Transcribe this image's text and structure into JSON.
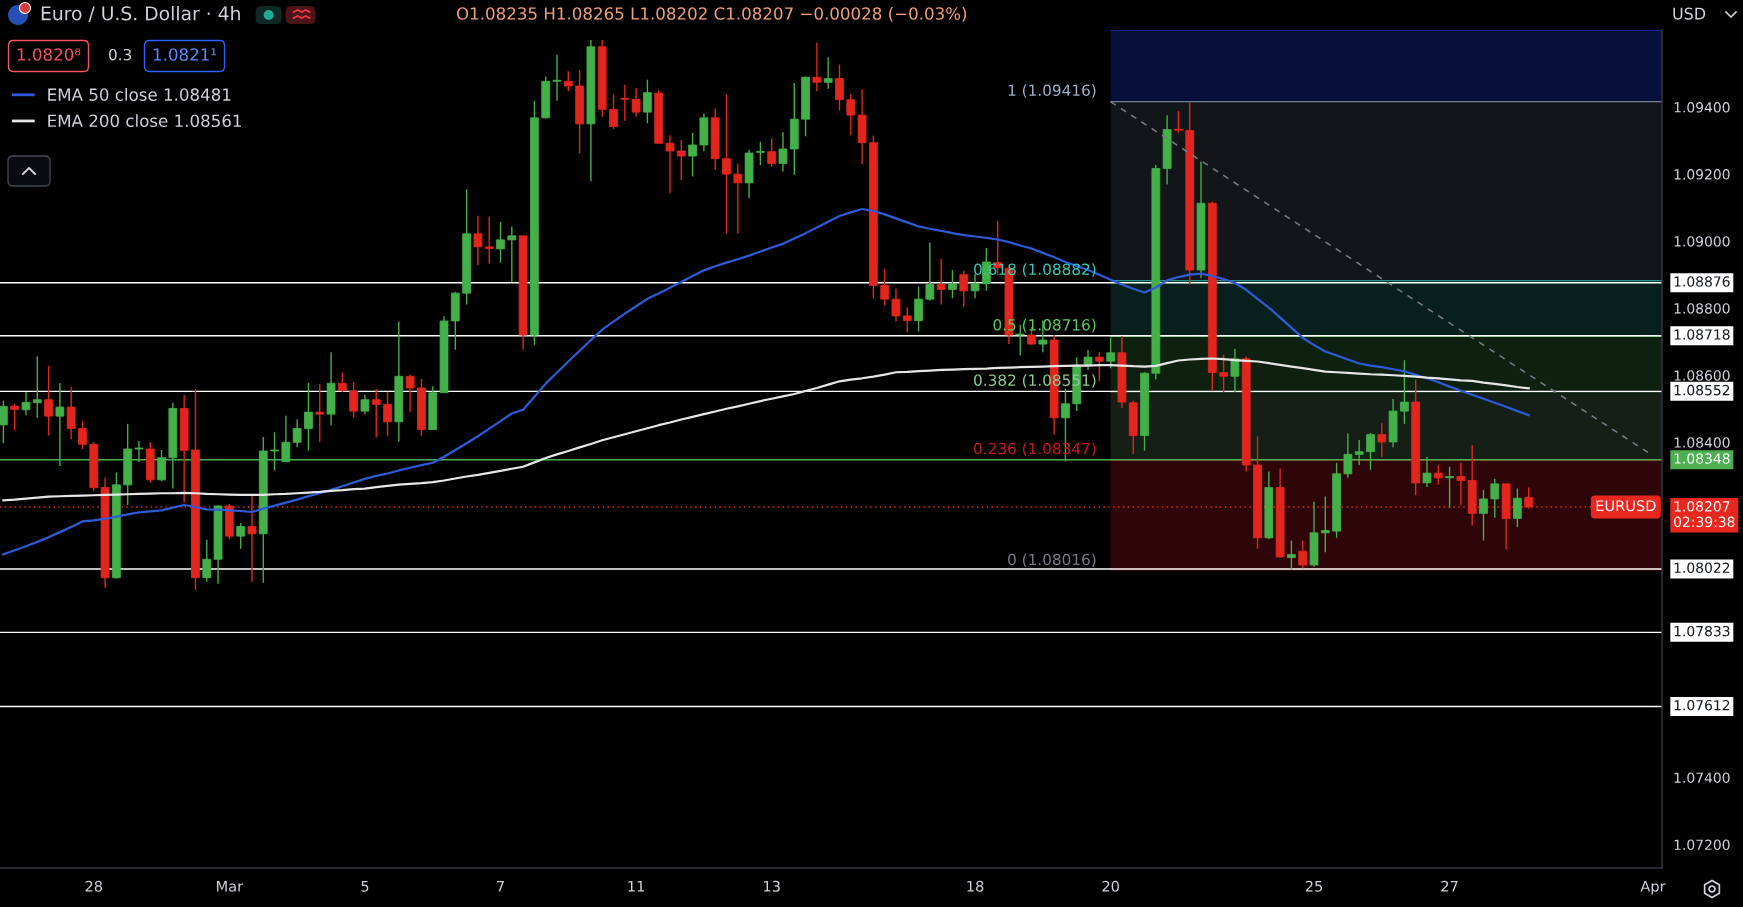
{
  "chart_data": {
    "type": "candlestick",
    "title": "Euro / U.S. Dollar · 4h",
    "subtitle": "O1.08235 H1.08265 L1.08202 C1.08207 −0.00028 (−0.03%)",
    "categories": [
      null,
      null,
      null,
      null,
      null,
      null,
      null,
      null,
      "28",
      null,
      null,
      null,
      null,
      null,
      null,
      null,
      null,
      null,
      null,
      null,
      "Mar",
      null,
      null,
      null,
      null,
      null,
      null,
      null,
      null,
      null,
      null,
      null,
      "5",
      null,
      null,
      null,
      null,
      null,
      null,
      null,
      null,
      null,
      null,
      null,
      "7",
      null,
      null,
      null,
      null,
      null,
      null,
      null,
      null,
      null,
      null,
      null,
      "11",
      null,
      null,
      null,
      null,
      null,
      null,
      null,
      null,
      null,
      null,
      null,
      "13",
      null,
      null,
      null,
      null,
      null,
      null,
      null,
      null,
      null,
      null,
      null,
      null,
      null,
      null,
      null,
      null,
      null,
      "18",
      null,
      null,
      null,
      null,
      null,
      null,
      null,
      null,
      null,
      null,
      null,
      "20",
      null,
      null,
      null,
      null,
      null,
      null,
      null,
      null,
      null,
      null,
      null,
      null,
      null,
      null,
      null,
      null,
      null,
      "25",
      null,
      null,
      null,
      null,
      null,
      null,
      null,
      null,
      null,
      null,
      null,
      "27",
      null,
      null,
      null,
      null,
      null,
      null,
      null,
      null,
      null,
      null,
      null,
      null,
      null,
      null,
      null,
      null,
      null,
      "Apr"
    ],
    "ohlc": [
      [
        1.08452,
        1.08524,
        1.08397,
        1.08507
      ],
      [
        1.08508,
        1.08515,
        1.08436,
        1.08498
      ],
      [
        1.08497,
        1.0855,
        1.08481,
        1.08519
      ],
      [
        1.08518,
        1.08657,
        1.08473,
        1.08527
      ],
      [
        1.08527,
        1.08628,
        1.0842,
        1.08478
      ],
      [
        1.08478,
        1.08577,
        1.08329,
        1.08505
      ],
      [
        1.08505,
        1.08565,
        1.08409,
        1.08441
      ],
      [
        1.08441,
        1.08462,
        1.0838,
        1.08394
      ],
      [
        1.08394,
        1.08401,
        1.08255,
        1.08265
      ],
      [
        1.08265,
        1.08295,
        1.07966,
        1.07996
      ],
      [
        1.07996,
        1.0831,
        1.07993,
        1.08273
      ],
      [
        1.08273,
        1.08455,
        1.08213,
        1.0838
      ],
      [
        1.0838,
        1.08404,
        1.08341,
        1.08381
      ],
      [
        1.0838,
        1.08401,
        1.08279,
        1.08288
      ],
      [
        1.08288,
        1.08377,
        1.08284,
        1.08354
      ],
      [
        1.08354,
        1.08518,
        1.08262,
        1.08501
      ],
      [
        1.08501,
        1.08542,
        1.0822,
        1.08376
      ],
      [
        1.08377,
        1.08558,
        1.07959,
        1.07996
      ],
      [
        1.07996,
        1.08109,
        1.07984,
        1.08051
      ],
      [
        1.08051,
        1.08212,
        1.07978,
        1.0821
      ],
      [
        1.0821,
        1.08216,
        1.08111,
        1.0812
      ],
      [
        1.0812,
        1.08159,
        1.08082,
        1.08149
      ],
      [
        1.08149,
        1.08243,
        1.07984,
        1.08127
      ],
      [
        1.08127,
        1.08416,
        1.07981,
        1.08374
      ],
      [
        1.08374,
        1.0843,
        1.08316,
        1.08375
      ],
      [
        1.08342,
        1.08479,
        1.08342,
        1.084
      ],
      [
        1.084,
        1.08469,
        1.08385,
        1.08441
      ],
      [
        1.08441,
        1.08577,
        1.08375,
        1.0849
      ],
      [
        1.0849,
        1.08574,
        1.08401,
        1.08484
      ],
      [
        1.08484,
        1.08669,
        1.0845,
        1.08576
      ],
      [
        1.08576,
        1.08608,
        1.0855,
        1.08554
      ],
      [
        1.08553,
        1.0858,
        1.08473,
        1.08493
      ],
      [
        1.08493,
        1.08542,
        1.08484,
        1.08527
      ],
      [
        1.08527,
        1.08558,
        1.08414,
        1.08513
      ],
      [
        1.08513,
        1.08551,
        1.08419,
        1.08461
      ],
      [
        1.08461,
        1.0876,
        1.08402,
        1.08597
      ],
      [
        1.08597,
        1.08601,
        1.08491,
        1.08562
      ],
      [
        1.08562,
        1.08589,
        1.08419,
        1.08438
      ],
      [
        1.08438,
        1.08567,
        1.08438,
        1.08548
      ],
      [
        1.08548,
        1.08776,
        1.08548,
        1.08762
      ],
      [
        1.08762,
        1.08849,
        1.08676,
        1.08845
      ],
      [
        1.08845,
        1.09155,
        1.08811,
        1.09022
      ],
      [
        1.09022,
        1.09076,
        1.08928,
        1.08983
      ],
      [
        1.08983,
        1.09073,
        1.08933,
        1.08978
      ],
      [
        1.08977,
        1.09058,
        1.08936,
        1.09004
      ],
      [
        1.09004,
        1.09044,
        1.08878,
        1.09016
      ],
      [
        1.09016,
        1.09016,
        1.08676,
        1.0872
      ],
      [
        1.0872,
        1.09419,
        1.0869,
        1.09368
      ],
      [
        1.09368,
        1.09491,
        1.09366,
        1.09477
      ],
      [
        1.09477,
        1.09556,
        1.09419,
        1.09478
      ],
      [
        1.09477,
        1.09507,
        1.09448,
        1.09463
      ],
      [
        1.09463,
        1.0951,
        1.09262,
        1.0935
      ],
      [
        1.0935,
        1.096,
        1.09179,
        1.0958
      ],
      [
        1.0958,
        1.096,
        1.09371,
        1.09393
      ],
      [
        1.09393,
        1.09438,
        1.09335,
        1.09342
      ],
      [
        1.09424,
        1.09467,
        1.09359,
        1.09423
      ],
      [
        1.09423,
        1.09456,
        1.09371,
        1.09385
      ],
      [
        1.09385,
        1.09482,
        1.09352,
        1.09443
      ],
      [
        1.09442,
        1.0945,
        1.09292,
        1.09292
      ],
      [
        1.09292,
        1.09316,
        1.09143,
        1.09269
      ],
      [
        1.09269,
        1.09302,
        1.09182,
        1.09254
      ],
      [
        1.09254,
        1.09323,
        1.09193,
        1.09287
      ],
      [
        1.09287,
        1.09381,
        1.09268,
        1.09368
      ],
      [
        1.09368,
        1.09395,
        1.09212,
        1.09246
      ],
      [
        1.09246,
        1.09438,
        1.09022,
        1.092
      ],
      [
        1.092,
        1.09232,
        1.09022,
        1.09174
      ],
      [
        1.09174,
        1.09273,
        1.09128,
        1.09263
      ],
      [
        1.09265,
        1.09296,
        1.09227,
        1.09266
      ],
      [
        1.09267,
        1.09307,
        1.09222,
        1.09232
      ],
      [
        1.09232,
        1.09325,
        1.09208,
        1.09275
      ],
      [
        1.09275,
        1.09472,
        1.09198,
        1.09364
      ],
      [
        1.09364,
        1.09491,
        1.09313,
        1.09489
      ],
      [
        1.09489,
        1.09592,
        1.09448,
        1.09474
      ],
      [
        1.09474,
        1.09549,
        1.09455,
        1.09485
      ],
      [
        1.09485,
        1.09527,
        1.0939,
        1.09422
      ],
      [
        1.09422,
        1.0944,
        1.09316,
        1.09376
      ],
      [
        1.09376,
        1.09453,
        1.0923,
        1.09294
      ],
      [
        1.09294,
        1.09315,
        1.08829,
        1.08868
      ],
      [
        1.08868,
        1.08917,
        1.08808,
        1.08827
      ],
      [
        1.08827,
        1.08859,
        1.0876,
        1.08777
      ],
      [
        1.08777,
        1.08803,
        1.08728,
        1.08763
      ],
      [
        1.08763,
        1.08864,
        1.08731,
        1.08827
      ],
      [
        1.08827,
        1.08996,
        1.08823,
        1.08871
      ],
      [
        1.08871,
        1.08948,
        1.08811,
        1.08856
      ],
      [
        1.08856,
        1.08914,
        1.0883,
        1.08873
      ],
      [
        1.089,
        1.08912,
        1.08805,
        1.08852
      ],
      [
        1.08852,
        1.08902,
        1.0883,
        1.08873
      ],
      [
        1.08873,
        1.0898,
        1.08852,
        1.08938
      ],
      [
        1.08936,
        1.0906,
        1.089,
        1.08921
      ],
      [
        1.08919,
        1.08919,
        1.08693,
        1.0872
      ],
      [
        1.0872,
        1.08751,
        1.08659,
        1.08721
      ],
      [
        1.0872,
        1.08744,
        1.08691,
        1.08693
      ],
      [
        1.08693,
        1.08763,
        1.08669,
        1.08705
      ],
      [
        1.08705,
        1.0872,
        1.08423,
        1.08473
      ],
      [
        1.08473,
        1.0856,
        1.08343,
        1.08515
      ],
      [
        1.08515,
        1.08654,
        1.08493,
        1.0863
      ],
      [
        1.0863,
        1.08675,
        1.08616,
        1.08654
      ],
      [
        1.08654,
        1.08669,
        1.08583,
        1.08642
      ],
      [
        1.08642,
        1.08712,
        1.08621,
        1.08667
      ],
      [
        1.08667,
        1.08717,
        1.08502,
        1.0852
      ],
      [
        1.08518,
        1.08524,
        1.08365,
        1.0842
      ],
      [
        1.0842,
        1.08609,
        1.08375,
        1.08606
      ],
      [
        1.08606,
        1.09227,
        1.08587,
        1.09217
      ],
      [
        1.09217,
        1.09376,
        1.09169,
        1.09333
      ],
      [
        1.09332,
        1.09388,
        1.09323,
        1.09331
      ],
      [
        1.0933,
        1.09416,
        1.08871,
        1.08914
      ],
      [
        1.08914,
        1.09238,
        1.0889,
        1.09113
      ],
      [
        1.09113,
        1.09118,
        1.08553,
        1.08608
      ],
      [
        1.08608,
        1.08661,
        1.0855,
        1.08597
      ],
      [
        1.08597,
        1.08678,
        1.0855,
        1.08649
      ],
      [
        1.08649,
        1.08656,
        1.08313,
        1.08332
      ],
      [
        1.08332,
        1.08418,
        1.08082,
        1.08115
      ],
      [
        1.08115,
        1.08313,
        1.08111,
        1.08265
      ],
      [
        1.08265,
        1.08322,
        1.08056,
        1.08058
      ],
      [
        1.08056,
        1.08107,
        1.08021,
        1.08065
      ],
      [
        1.08075,
        1.08106,
        1.08024,
        1.08034
      ],
      [
        1.08034,
        1.08223,
        1.08029,
        1.0813
      ],
      [
        1.0813,
        1.08238,
        1.08072,
        1.08137
      ],
      [
        1.08135,
        1.08339,
        1.08115,
        1.08306
      ],
      [
        1.08306,
        1.08426,
        1.08294,
        1.08364
      ],
      [
        1.08364,
        1.08407,
        1.08332,
        1.08372
      ],
      [
        1.08372,
        1.08428,
        1.08318,
        1.08423
      ],
      [
        1.08423,
        1.08457,
        1.08356,
        1.08401
      ],
      [
        1.08401,
        1.08529,
        1.08385,
        1.08493
      ],
      [
        1.08493,
        1.08645,
        1.08455,
        1.0852
      ],
      [
        1.0852,
        1.08587,
        1.08242,
        1.08279
      ],
      [
        1.08279,
        1.08356,
        1.08267,
        1.08308
      ],
      [
        1.08308,
        1.08332,
        1.08274,
        1.08294
      ],
      [
        1.08294,
        1.08327,
        1.08204,
        1.08298
      ],
      [
        1.08298,
        1.08339,
        1.08212,
        1.08286
      ],
      [
        1.08286,
        1.08392,
        1.08152,
        1.08188
      ],
      [
        1.08188,
        1.08258,
        1.08107,
        1.08231
      ],
      [
        1.08231,
        1.08291,
        1.08175,
        1.08276
      ],
      [
        1.08276,
        1.08276,
        1.0808,
        1.08173
      ],
      [
        1.08173,
        1.08262,
        1.08147,
        1.08233
      ],
      [
        1.08235,
        1.08265,
        1.08202,
        1.08207
      ],
      null,
      null,
      null,
      null,
      null,
      null,
      null,
      null,
      null,
      null,
      null
    ],
    "colors": [
      "#43b04a",
      "#e2261d",
      "#43b04a",
      "#43b04a",
      "#e2261d",
      "#43b04a",
      "#e2261d",
      "#e2261d",
      "#e2261d",
      "#e2261d",
      "#43b04a",
      "#43b04a",
      "#43b04a",
      "#e2261d",
      "#43b04a",
      "#43b04a",
      "#e2261d",
      "#e2261d",
      "#43b04a",
      "#43b04a",
      "#e2261d",
      "#43b04a",
      "#e2261d",
      "#43b04a",
      "#43b04a",
      "#43b04a",
      "#43b04a",
      "#43b04a",
      "#e2261d",
      "#43b04a",
      "#e2261d",
      "#e2261d",
      "#43b04a",
      "#e2261d",
      "#e2261d",
      "#43b04a",
      "#e2261d",
      "#e2261d",
      "#43b04a",
      "#43b04a",
      "#43b04a",
      "#43b04a",
      "#e2261d",
      "#e2261d",
      "#43b04a",
      "#43b04a",
      "#e2261d",
      "#43b04a",
      "#43b04a",
      "#43b04a",
      "#e2261d",
      "#e2261d",
      "#43b04a",
      "#e2261d",
      "#e2261d",
      "#e2261d",
      "#e2261d",
      "#43b04a",
      "#e2261d",
      "#e2261d",
      "#e2261d",
      "#43b04a",
      "#43b04a",
      "#e2261d",
      "#e2261d",
      "#e2261d",
      "#43b04a",
      "#43b04a",
      "#e2261d",
      "#43b04a",
      "#43b04a",
      "#43b04a",
      "#e2261d",
      "#43b04a",
      "#e2261d",
      "#e2261d",
      "#e2261d",
      "#e2261d",
      "#e2261d",
      "#e2261d",
      "#e2261d",
      "#43b04a",
      "#43b04a",
      "#e2261d",
      "#43b04a",
      "#e2261d",
      "#43b04a",
      "#43b04a",
      "#e2261d",
      "#e2261d",
      "#43b04a",
      "#e2261d",
      "#43b04a",
      "#e2261d",
      "#43b04a",
      "#43b04a",
      "#43b04a",
      "#e2261d",
      "#43b04a",
      "#e2261d",
      "#e2261d",
      "#43b04a",
      "#43b04a",
      "#43b04a",
      "#e2261d",
      "#e2261d",
      "#43b04a",
      "#e2261d",
      "#e2261d",
      "#43b04a",
      "#e2261d",
      "#e2261d",
      "#43b04a",
      "#e2261d",
      "#43b04a",
      "#e2261d",
      "#43b04a",
      "#43b04a",
      "#43b04a",
      "#43b04a",
      "#43b04a",
      "#43b04a",
      "#e2261d",
      "#43b04a",
      "#43b04a",
      "#e2261d",
      "#43b04a",
      "#e2261d",
      "#43b04a",
      "#e2261d",
      "#e2261d",
      "#43b04a",
      "#43b04a",
      "#e2261d",
      "#43b04a",
      "#e2261d",
      null,
      null,
      null,
      null,
      null,
      null,
      null,
      null,
      null,
      null,
      null
    ],
    "series": [
      {
        "name": "EMA 50 close 1.08481",
        "type": "line",
        "color": "#2f5bd8",
        "values": [
          1.08066,
          1.08078,
          1.0809,
          1.08103,
          1.08117,
          1.08132,
          1.08147,
          1.08164,
          1.08167,
          1.08172,
          1.08178,
          1.08185,
          1.08191,
          1.08194,
          1.08197,
          1.08205,
          1.08213,
          1.08207,
          1.082,
          1.08199,
          1.08197,
          1.08195,
          1.08192,
          1.08202,
          1.08211,
          1.0822,
          1.08229,
          1.08239,
          1.08248,
          1.08258,
          1.08269,
          1.0828,
          1.08291,
          1.083,
          1.08307,
          1.08316,
          1.08324,
          1.08332,
          1.08339,
          1.08357,
          1.08377,
          1.08397,
          1.08418,
          1.08441,
          1.08463,
          1.08486,
          1.08497,
          1.08536,
          1.08575,
          1.08608,
          1.08641,
          1.08673,
          1.08705,
          1.08736,
          1.0876,
          1.08784,
          1.08806,
          1.08828,
          1.08844,
          1.08861,
          1.08878,
          1.08896,
          1.08913,
          1.08925,
          1.08936,
          1.08946,
          1.08957,
          1.08969,
          1.08981,
          1.08992,
          1.09008,
          1.09024,
          1.09041,
          1.09058,
          1.09075,
          1.09086,
          1.09096,
          1.0909,
          1.0908,
          1.09068,
          1.09056,
          1.09044,
          1.09037,
          1.09031,
          1.09024,
          1.09018,
          1.09014,
          1.0901,
          1.09005,
          1.08997,
          1.08987,
          1.08978,
          1.08965,
          1.08952,
          1.08938,
          1.08926,
          1.08914,
          1.089,
          1.08885,
          1.08871,
          1.08858,
          1.08847,
          1.08862,
          1.08883,
          1.08893,
          1.089,
          1.08903,
          1.08896,
          1.08887,
          1.08875,
          1.08855,
          1.08828,
          1.08802,
          1.08772,
          1.08742,
          1.08712,
          1.0869,
          1.08671,
          1.08659,
          1.08647,
          1.08635,
          1.08629,
          1.08624,
          1.08618,
          1.08612,
          1.08601,
          1.08591,
          1.08579,
          1.08566,
          1.08554,
          1.08542,
          1.0853,
          1.08518,
          1.08506,
          1.08493,
          1.08481,
          null,
          null,
          null,
          null,
          null,
          null,
          null,
          null,
          null,
          null,
          null
        ]
      },
      {
        "name": "EMA 200 close 1.08561",
        "type": "line",
        "color": "#e6e6e6",
        "values": [
          1.08227,
          1.08229,
          1.08232,
          1.08235,
          1.08238,
          1.08239,
          1.0824,
          1.08241,
          1.08242,
          1.08243,
          1.08244,
          1.08245,
          1.08246,
          1.08247,
          1.08248,
          1.08248,
          1.08249,
          1.08248,
          1.08246,
          1.08245,
          1.08244,
          1.08243,
          1.08243,
          1.08243,
          1.08245,
          1.08246,
          1.08248,
          1.0825,
          1.08252,
          1.08255,
          1.08257,
          1.0826,
          1.08262,
          1.08266,
          1.0827,
          1.08274,
          1.08276,
          1.08278,
          1.08281,
          1.08286,
          1.08292,
          1.08298,
          1.08303,
          1.08309,
          1.08315,
          1.08321,
          1.08327,
          1.0834,
          1.08353,
          1.08364,
          1.08374,
          1.08385,
          1.08395,
          1.08406,
          1.08415,
          1.08424,
          1.08433,
          1.08442,
          1.08451,
          1.08459,
          1.08468,
          1.08476,
          1.08484,
          1.08492,
          1.085,
          1.08507,
          1.08515,
          1.08523,
          1.0853,
          1.08537,
          1.08544,
          1.08553,
          1.08562,
          1.08572,
          1.08582,
          1.08587,
          1.08591,
          1.08596,
          1.08602,
          1.08609,
          1.0861,
          1.08612,
          1.08614,
          1.08616,
          1.08617,
          1.08618,
          1.08619,
          1.0862,
          1.08622,
          1.08623,
          1.08624,
          1.08625,
          1.08626,
          1.08627,
          1.08628,
          1.08629,
          1.08629,
          1.0863,
          1.0863,
          1.08629,
          1.08627,
          1.08626,
          1.08628,
          1.08636,
          1.08644,
          1.08647,
          1.08649,
          1.0865,
          1.08648,
          1.08645,
          1.08643,
          1.08641,
          1.08636,
          1.08631,
          1.08626,
          1.08621,
          1.08616,
          1.08611,
          1.08609,
          1.08607,
          1.08605,
          1.08603,
          1.08602,
          1.086,
          1.08598,
          1.08596,
          1.08593,
          1.08591,
          1.08588,
          1.08585,
          1.08583,
          1.08578,
          1.08574,
          1.0857,
          1.08565,
          1.08561,
          null,
          null,
          null,
          null,
          null,
          null,
          null,
          null,
          null,
          null,
          null
        ]
      },
      {
        "type": "line",
        "color": "#787b86",
        "line_style": "dashed",
        "x": [
          "20",
          "Apr"
        ],
        "values": [
          1.09416,
          1.0836
        ]
      }
    ],
    "ylim": [
      1.0713,
      1.0963
    ],
    "yticks": [
      {
        "value": 1.072,
        "label": "1.07200"
      },
      {
        "value": 1.074,
        "label": "1.07400"
      },
      {
        "value": 1.084,
        "label": "1.08400"
      },
      {
        "value": 1.086,
        "label": "1.08600"
      },
      {
        "value": 1.088,
        "label": "1.08800"
      },
      {
        "value": 1.09,
        "label": "1.09000"
      },
      {
        "value": 1.092,
        "label": "1.09200"
      },
      {
        "value": 1.094,
        "label": "1.09400"
      }
    ],
    "ref_lines": [
      {
        "axis": "y",
        "value": 1.08876,
        "label": "1.08876",
        "color": "#ffffff"
      },
      {
        "axis": "y",
        "value": 1.08718,
        "label": "1.08718",
        "color": "#ffffff"
      },
      {
        "axis": "y",
        "value": 1.08552,
        "label": "1.08552",
        "color": "#ffffff"
      },
      {
        "axis": "y",
        "value": 1.08348,
        "label": "1.08348",
        "color": "#4caf50"
      },
      {
        "axis": "y",
        "value": 1.08207,
        "label": "1.08207\n02:39:38",
        "color": "#e8281e",
        "line_style": "dotted"
      },
      {
        "axis": "y",
        "value": 1.08022,
        "label": "1.08022",
        "color": "#ffffff"
      },
      {
        "axis": "y",
        "value": 1.07833,
        "label": "1.07833",
        "color": "#ffffff"
      },
      {
        "axis": "y",
        "value": 1.07612,
        "label": "1.07612",
        "color": "#ffffff"
      }
    ],
    "bands": [
      {
        "axis": "y",
        "from": 1.08016,
        "to": 1.08347,
        "color": "#2e0508"
      },
      {
        "axis": "y",
        "from": 1.08347,
        "to": 1.08551,
        "color": "#151f16"
      },
      {
        "axis": "y",
        "from": 1.08551,
        "to": 1.08716,
        "color": "#0e200f"
      },
      {
        "axis": "y",
        "from": 1.08716,
        "to": 1.08882,
        "color": "#08201d"
      },
      {
        "axis": "y",
        "from": 1.08882,
        "to": 1.09416,
        "color": "#131619"
      },
      {
        "axis": "y",
        "from": 1.09416,
        "to": 1.0963,
        "color": "#06103a"
      }
    ],
    "annotations": [
      "1.0820⁸",
      "0.3",
      "1.0821¹",
      "USD",
      {
        "text": "1 (1.09416)",
        "x": "20",
        "y": 1.09416
      },
      {
        "text": "0.618 (1.08882)",
        "x": "20",
        "y": 1.08882
      },
      {
        "text": "0.5 (1.08716)",
        "x": "20",
        "y": 1.08716
      },
      {
        "text": "0.382 (1.08551)",
        "x": "20",
        "y": 1.08551
      },
      {
        "text": "0.236 (1.08347)",
        "x": "20",
        "y": 1.08347
      },
      {
        "text": "0 (1.08016)",
        "x": "20",
        "y": 1.08016
      },
      {
        "text": "EURUSD",
        "y": 1.08207
      }
    ],
    "legend": "top left"
  }
}
